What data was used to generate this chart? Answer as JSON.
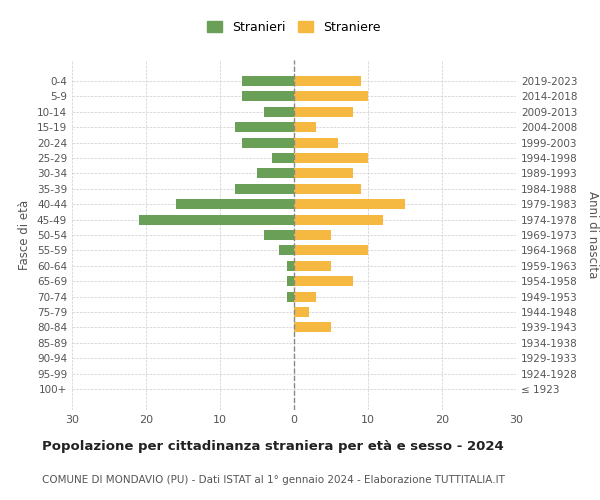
{
  "age_groups": [
    "100+",
    "95-99",
    "90-94",
    "85-89",
    "80-84",
    "75-79",
    "70-74",
    "65-69",
    "60-64",
    "55-59",
    "50-54",
    "45-49",
    "40-44",
    "35-39",
    "30-34",
    "25-29",
    "20-24",
    "15-19",
    "10-14",
    "5-9",
    "0-4"
  ],
  "birth_years": [
    "≤ 1923",
    "1924-1928",
    "1929-1933",
    "1934-1938",
    "1939-1943",
    "1944-1948",
    "1949-1953",
    "1954-1958",
    "1959-1963",
    "1964-1968",
    "1969-1973",
    "1974-1978",
    "1979-1983",
    "1984-1988",
    "1989-1993",
    "1994-1998",
    "1999-2003",
    "2004-2008",
    "2009-2013",
    "2014-2018",
    "2019-2023"
  ],
  "males": [
    0,
    0,
    0,
    0,
    0,
    0,
    1,
    1,
    1,
    2,
    4,
    21,
    16,
    8,
    5,
    3,
    7,
    8,
    4,
    7,
    7
  ],
  "females": [
    0,
    0,
    0,
    0,
    5,
    2,
    3,
    8,
    5,
    10,
    5,
    12,
    15,
    9,
    8,
    10,
    6,
    3,
    8,
    10,
    9
  ],
  "male_color": "#6a9f58",
  "female_color": "#f5b942",
  "background_color": "#ffffff",
  "grid_color": "#cccccc",
  "xlim": 30,
  "title": "Popolazione per cittadinanza straniera per età e sesso - 2024",
  "subtitle": "COMUNE DI MONDAVIO (PU) - Dati ISTAT al 1° gennaio 2024 - Elaborazione TUTTITALIA.IT",
  "legend_stranieri": "Stranieri",
  "legend_straniere": "Straniere",
  "ylabel_left": "Fasce di età",
  "ylabel_right": "Anni di nascita"
}
